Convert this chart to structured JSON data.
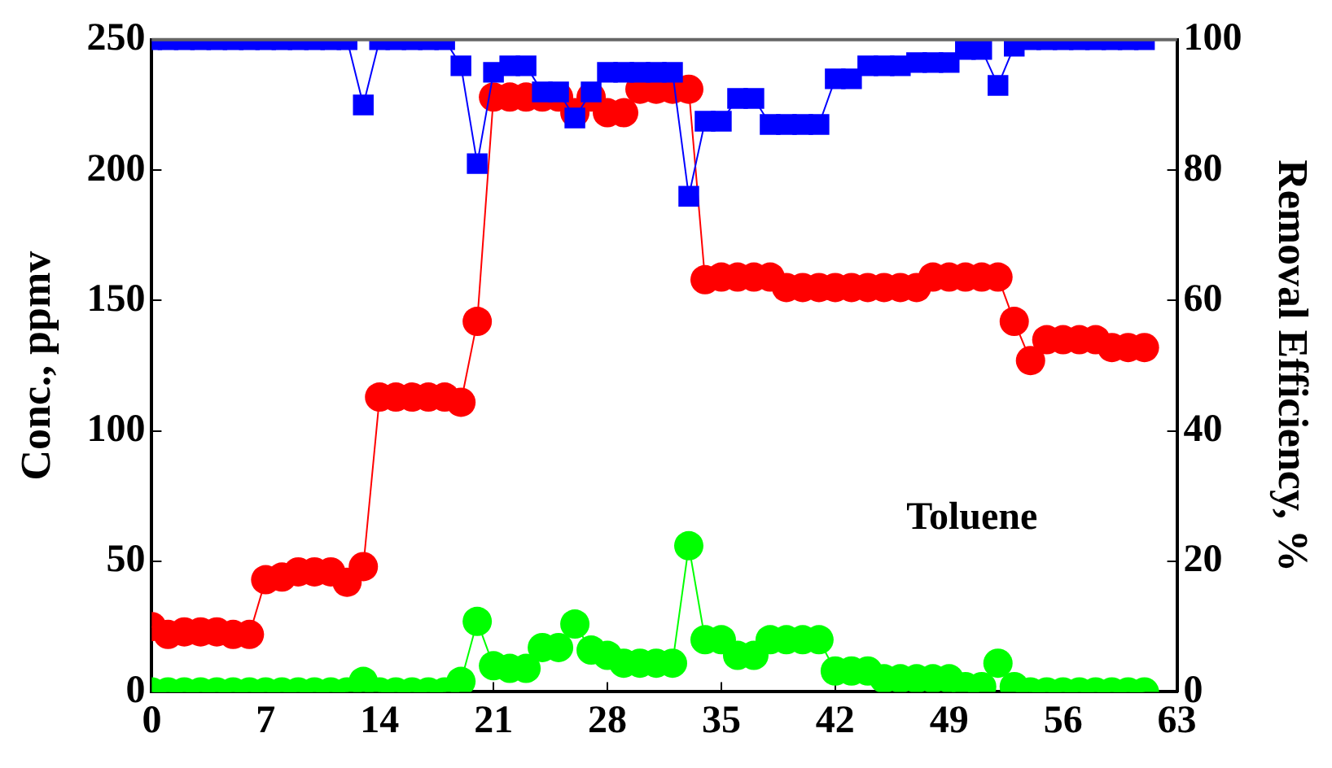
{
  "chart_data": {
    "type": "line",
    "ylabel": "Conc., ppmv",
    "y2label": "Removal Efficiency, %",
    "annotations": [
      "Toluene"
    ],
    "x": [
      0,
      1,
      2,
      3,
      4,
      5,
      6,
      7,
      8,
      9,
      10,
      11,
      12,
      13,
      14,
      15,
      16,
      17,
      18,
      19,
      20,
      21,
      22,
      23,
      24,
      25,
      26,
      27,
      28,
      29,
      30,
      31,
      32,
      33,
      34,
      35,
      36,
      37,
      38,
      39,
      40,
      41,
      42,
      43,
      44,
      45,
      46,
      47,
      48,
      49,
      50,
      51,
      52,
      53,
      54,
      55,
      56,
      57,
      58,
      59,
      60,
      61
    ],
    "series": [
      {
        "color": "#ff0000",
        "marker": "circle",
        "values": [
          25,
          22,
          23,
          23,
          23,
          22,
          22,
          43,
          44,
          46,
          46,
          46,
          42,
          48,
          113,
          113,
          113,
          113,
          113,
          111,
          142,
          228,
          228,
          228,
          228,
          228,
          222,
          228,
          222,
          222,
          231,
          231,
          231,
          231,
          158,
          159,
          159,
          159,
          159,
          155,
          155,
          155,
          155,
          155,
          155,
          155,
          155,
          155,
          159,
          159,
          159,
          159,
          159,
          142,
          127,
          135,
          135,
          135,
          135,
          132,
          132,
          132
        ]
      },
      {
        "color": "#00ff00",
        "marker": "circle",
        "values": [
          0,
          0,
          0,
          0,
          0,
          0,
          0,
          0,
          0,
          0,
          0,
          0,
          0,
          4,
          0,
          0,
          0,
          0,
          0,
          4,
          27,
          10,
          9,
          9,
          17,
          17,
          26,
          16,
          14,
          11,
          11,
          11,
          11,
          56,
          20,
          20,
          14,
          14,
          20,
          20,
          20,
          20,
          8,
          8,
          8,
          5,
          5,
          5,
          5,
          5,
          2,
          2,
          11,
          2,
          0,
          0,
          0,
          0,
          0,
          0,
          0,
          0
        ]
      },
      {
        "color": "#0000ff",
        "marker": "square",
        "axis": "y2",
        "values": [
          100,
          100,
          100,
          100,
          100,
          100,
          100,
          100,
          100,
          100,
          100,
          100,
          100,
          90,
          100,
          100,
          100,
          100,
          100,
          96,
          81,
          95,
          96,
          96,
          92,
          92,
          88,
          92,
          95,
          95,
          95,
          95,
          95,
          76,
          87.5,
          87.5,
          91,
          91,
          87,
          87,
          87,
          87,
          94,
          94,
          96,
          96,
          96,
          96.5,
          96.5,
          96.5,
          98.5,
          98.5,
          93,
          99,
          100,
          100,
          100,
          100,
          100,
          100,
          100,
          100
        ]
      }
    ],
    "xlim": [
      0,
      63
    ],
    "xticks": [
      0,
      7,
      14,
      21,
      28,
      35,
      42,
      49,
      56,
      63
    ],
    "ylim": [
      0,
      250
    ],
    "yticks": [
      0,
      50,
      100,
      150,
      200,
      250
    ],
    "y2lim": [
      0,
      100
    ],
    "y2ticks": [
      0,
      20,
      40,
      60,
      80,
      100
    ],
    "grid": false,
    "legend": false
  }
}
